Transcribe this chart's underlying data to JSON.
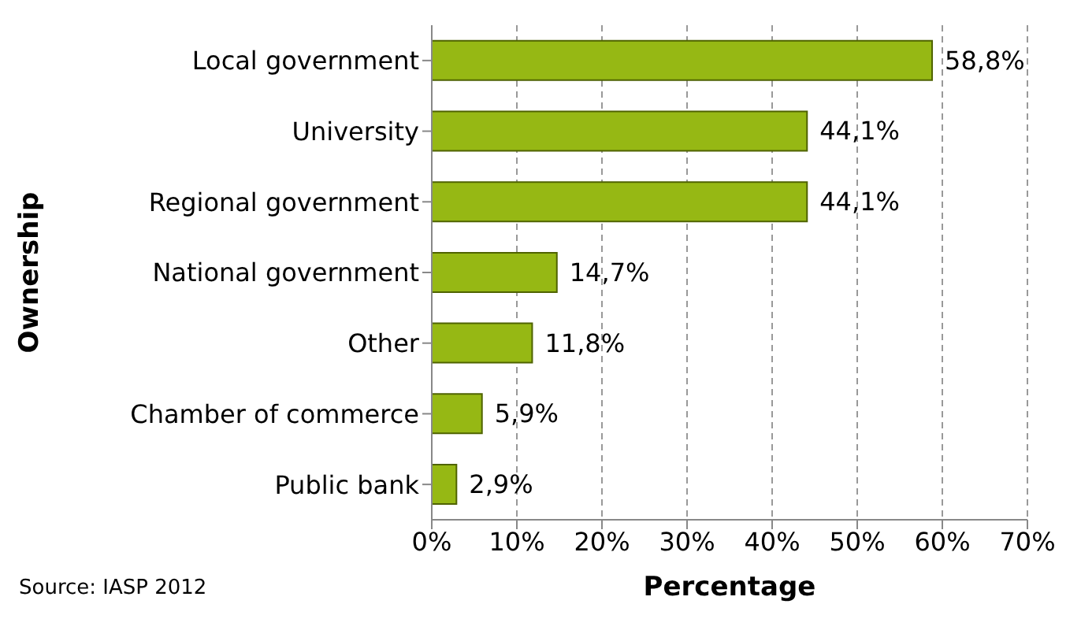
{
  "chart_data": {
    "type": "bar",
    "orientation": "horizontal",
    "xlabel": "Percentage",
    "ylabel": "Ownership",
    "categories": [
      "Local government",
      "University",
      "Regional government",
      "National government",
      "Other",
      "Chamber of commerce",
      "Public bank"
    ],
    "values": [
      58.8,
      44.1,
      44.1,
      14.7,
      11.8,
      5.9,
      2.9
    ],
    "value_labels": [
      "58,8%",
      "44,1%",
      "44,1%",
      "14,7%",
      "11,8%",
      "5,9%",
      "2,9%"
    ],
    "color": "#96b814",
    "xlim": [
      0,
      70
    ],
    "xticks": [
      {
        "value": 0,
        "label": "0%"
      },
      {
        "value": 10,
        "label": "10%"
      },
      {
        "value": 20,
        "label": "20%"
      },
      {
        "value": 30,
        "label": "30%"
      },
      {
        "value": 40,
        "label": "40%"
      },
      {
        "value": 50,
        "label": "50%"
      },
      {
        "value": 60,
        "label": "60%"
      },
      {
        "value": 70,
        "label": "70%"
      }
    ],
    "grid": "x",
    "annotations": [
      "Source: IASP 2012"
    ]
  }
}
